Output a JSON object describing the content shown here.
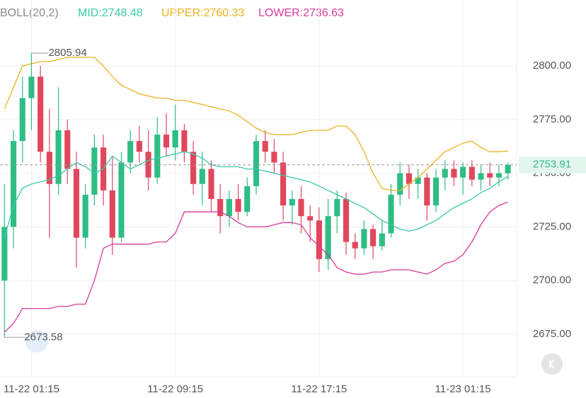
{
  "chart_data": {
    "type": "candlestick",
    "indicator": "BOLL(20,2)",
    "mid_label": "MID:2748.48",
    "upper_label": "UPPER:2760.33",
    "lower_label": "LOWER:2736.63",
    "categories": [
      null,
      null,
      null,
      "11-22 01:15",
      null,
      null,
      null,
      null,
      null,
      null,
      null,
      null,
      null,
      null,
      null,
      null,
      null,
      null,
      null,
      "11-22 09:15",
      null,
      null,
      null,
      null,
      null,
      null,
      null,
      null,
      null,
      null,
      null,
      null,
      null,
      null,
      null,
      "11-22 17:15",
      null,
      null,
      null,
      null,
      null,
      null,
      null,
      null,
      null,
      null,
      null,
      null,
      null,
      null,
      null,
      "11-23 01:15",
      null,
      null,
      null,
      null,
      null
    ],
    "open": [
      2700,
      2725,
      2765,
      2785,
      2795,
      2760,
      2745,
      2770,
      2752,
      2720,
      2740,
      2762,
      2742,
      2720,
      2755,
      2765,
      2760,
      2748,
      2768,
      2762,
      2770,
      2760,
      2745,
      2752,
      2738,
      2730,
      2738,
      2732,
      2744,
      2765,
      2760,
      2755,
      2735,
      2738,
      2730,
      2728,
      2710,
      2730,
      2738,
      2718,
      2715,
      2724,
      2716,
      2722,
      2740,
      2750,
      2745,
      2748,
      2735,
      2748,
      2752,
      2748,
      2753,
      2747,
      2750,
      2748,
      2750
    ],
    "high": [
      2745,
      2770,
      2795,
      2805.94,
      2800,
      2780,
      2790,
      2775,
      2760,
      2745,
      2768,
      2768,
      2758,
      2760,
      2770,
      2772,
      2770,
      2776,
      2778,
      2782,
      2773,
      2765,
      2760,
      2756,
      2745,
      2742,
      2745,
      2748,
      2768,
      2770,
      2766,
      2760,
      2742,
      2744,
      2735,
      2734,
      2738,
      2742,
      2741,
      2722,
      2728,
      2726,
      2728,
      2745,
      2755,
      2754,
      2752,
      2750,
      2752,
      2756,
      2756,
      2755,
      2756,
      2754,
      2755,
      2754,
      2755
    ],
    "low": [
      2673.58,
      2715,
      2755,
      2770,
      2755,
      2720,
      2740,
      2745,
      2706,
      2715,
      2735,
      2735,
      2712,
      2718,
      2750,
      2755,
      2742,
      2745,
      2758,
      2756,
      2755,
      2740,
      2735,
      2732,
      2722,
      2725,
      2728,
      2730,
      2740,
      2755,
      2750,
      2728,
      2726,
      2722,
      2718,
      2704,
      2705,
      2722,
      2712,
      2710,
      2712,
      2710,
      2714,
      2720,
      2735,
      2738,
      2738,
      2728,
      2732,
      2742,
      2744,
      2740,
      2744,
      2742,
      2744,
      2744,
      2747
    ],
    "close": [
      2725,
      2765,
      2785,
      2795,
      2760,
      2745,
      2770,
      2752,
      2720,
      2740,
      2762,
      2742,
      2720,
      2755,
      2765,
      2760,
      2748,
      2768,
      2762,
      2770,
      2760,
      2745,
      2752,
      2738,
      2730,
      2738,
      2732,
      2744,
      2765,
      2760,
      2755,
      2735,
      2738,
      2730,
      2728,
      2710,
      2730,
      2738,
      2718,
      2715,
      2724,
      2716,
      2722,
      2740,
      2750,
      2745,
      2748,
      2735,
      2748,
      2752,
      2748,
      2753,
      2747,
      2750,
      2748,
      2750,
      2753.91
    ],
    "bands": [
      {
        "name": "UPPER",
        "color": "#eab21e",
        "values": [
          2780,
          2790,
          2800,
          2801,
          2802,
          2802,
          2803,
          2804,
          2804,
          2804,
          2804,
          2800,
          2795,
          2791,
          2789,
          2787,
          2786,
          2785,
          2785,
          2784,
          2784,
          2783,
          2782,
          2781,
          2780,
          2779,
          2777,
          2774,
          2771,
          2769,
          2768,
          2768,
          2768,
          2769,
          2770,
          2770,
          2770,
          2772,
          2772,
          2768,
          2760,
          2750,
          2743,
          2742,
          2742,
          2745,
          2748,
          2752,
          2756,
          2760,
          2762,
          2764,
          2765,
          2762,
          2760,
          2760,
          2760.33
        ]
      },
      {
        "name": "MID",
        "color": "#3cc9a9",
        "values": [
          2720,
          2735,
          2743,
          2745,
          2746,
          2747,
          2749,
          2752,
          2755,
          2753,
          2750,
          2752,
          2758,
          2755,
          2752,
          2754,
          2756,
          2757,
          2758,
          2759,
          2760,
          2759,
          2757,
          2754,
          2753,
          2753,
          2753,
          2752,
          2752,
          2751,
          2750,
          2749,
          2748,
          2747,
          2746,
          2744,
          2742,
          2740,
          2738,
          2736,
          2734,
          2731,
          2728,
          2726,
          2724,
          2723,
          2724,
          2726,
          2728,
          2731,
          2734,
          2736,
          2738,
          2741,
          2743,
          2746,
          2748.48
        ]
      },
      {
        "name": "LOWER",
        "color": "#d63a9c",
        "values": [
          2676,
          2680,
          2687,
          2687,
          2687,
          2687,
          2688,
          2688,
          2689,
          2689,
          2700,
          2715,
          2717,
          2717,
          2717,
          2717,
          2717,
          2718,
          2718,
          2722,
          2732,
          2732,
          2732,
          2732,
          2732,
          2730,
          2727,
          2725,
          2725,
          2725,
          2726,
          2727,
          2727,
          2726,
          2720,
          2716,
          2712,
          2706,
          2704,
          2703,
          2703,
          2704,
          2704,
          2705,
          2705,
          2705,
          2704,
          2703,
          2705,
          2708,
          2709,
          2712,
          2718,
          2726,
          2732,
          2735,
          2736.63
        ]
      }
    ],
    "up_color": "#2ebd85",
    "down_color": "#e0475d",
    "last_price": 2753.91,
    "max_annotation": 2805.94,
    "min_annotation": 2673.58,
    "ylim": [
      2655.2,
      2830.7
    ],
    "yticks": [
      {
        "value": 2675,
        "label": "2675.00"
      },
      {
        "value": 2700,
        "label": "2700.00"
      },
      {
        "value": 2725,
        "label": "2725.00"
      },
      {
        "value": 2750,
        "label": "2750.00"
      },
      {
        "value": 2775,
        "label": "2775.00"
      },
      {
        "value": 2800,
        "label": "2800.00"
      }
    ],
    "grid": true
  }
}
